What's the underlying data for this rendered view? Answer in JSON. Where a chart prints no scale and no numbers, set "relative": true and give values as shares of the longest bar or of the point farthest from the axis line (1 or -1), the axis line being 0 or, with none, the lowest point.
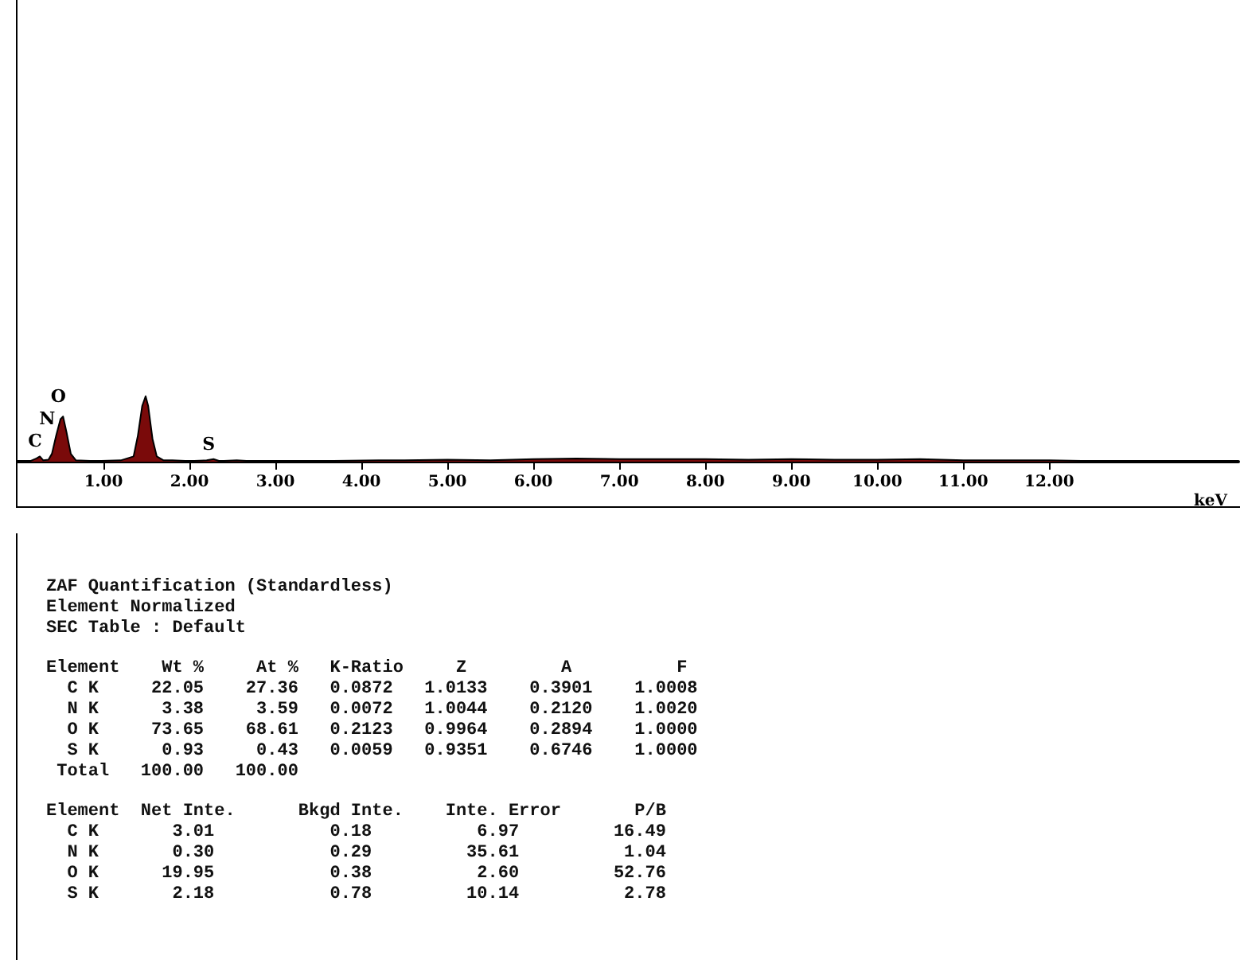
{
  "chart_data": [
    {
      "type": "area",
      "relative": true,
      "xlabel": "keV",
      "color": "#7a0a0a",
      "marker": "none",
      "grid": false,
      "xlim": [
        0,
        14.2
      ],
      "xticks": [
        {
          "value": 1,
          "label": "1.00"
        },
        {
          "value": 2,
          "label": "2.00"
        },
        {
          "value": 3,
          "label": "3.00"
        },
        {
          "value": 4,
          "label": "4.00"
        },
        {
          "value": 5,
          "label": "5.00"
        },
        {
          "value": 6,
          "label": "6.00"
        },
        {
          "value": 7,
          "label": "7.00"
        },
        {
          "value": 8,
          "label": "8.00"
        },
        {
          "value": 9,
          "label": "9.00"
        },
        {
          "value": 10,
          "label": "10.00"
        },
        {
          "value": 11,
          "label": "11.00"
        },
        {
          "value": 12,
          "label": "12.00"
        }
      ],
      "x": [
        0,
        0.15,
        0.22,
        0.26,
        0.3,
        0.36,
        0.4,
        0.45,
        0.5,
        0.53,
        0.57,
        0.62,
        0.68,
        0.9,
        1.2,
        1.35,
        1.4,
        1.45,
        1.49,
        1.52,
        1.57,
        1.62,
        1.7,
        1.8,
        2.0,
        2.2,
        2.28,
        2.35,
        2.55,
        2.7,
        3.5,
        4.2,
        4.5,
        5.0,
        5.5,
        6.0,
        6.5,
        7.0,
        7.5,
        8.0,
        8.5,
        9.0,
        9.5,
        10.0,
        10.5,
        11.0,
        11.5,
        12.0,
        12.5,
        13.0,
        13.5,
        14.2
      ],
      "values": [
        0.01,
        0.01,
        0.05,
        0.08,
        0.02,
        0.03,
        0.12,
        0.4,
        0.65,
        0.69,
        0.45,
        0.12,
        0.02,
        0.01,
        0.02,
        0.08,
        0.4,
        0.85,
        1.0,
        0.85,
        0.35,
        0.08,
        0.02,
        0.02,
        0.01,
        0.02,
        0.04,
        0.01,
        0.02,
        0.01,
        0.01,
        0.02,
        0.02,
        0.03,
        0.02,
        0.04,
        0.05,
        0.04,
        0.04,
        0.04,
        0.03,
        0.04,
        0.03,
        0.03,
        0.04,
        0.02,
        0.02,
        0.02,
        0.01,
        0.01,
        0.01,
        0.01
      ],
      "annotations": [
        {
          "text": "C",
          "x": 0.26,
          "y": 0.08
        },
        {
          "text": "N",
          "x": 0.4,
          "y": 0.12
        },
        {
          "text": "O",
          "x": 0.53,
          "y": 0.69
        },
        {
          "text": "S",
          "x": 2.28,
          "y": 0.04
        }
      ]
    },
    {
      "type": "other",
      "title": "ZAF Quantification (Standardless)",
      "annotations": [
        "Element Normalized",
        "SEC Table : Default",
        "Element    Wt %     At %   K-Ratio     Z         A          F",
        "  C K     22.05    27.36   0.0872   1.0133    0.3901    1.0008",
        "  N K      3.38     3.59   0.0072   1.0044    0.2120    1.0020",
        "  O K     73.65    68.61   0.2123   0.9964    0.2894    1.0000",
        "  S K      0.93     0.43   0.0059   0.9351    0.6746    1.0000",
        " Total   100.00   100.00",
        "Element  Net Inte.      Bkgd Inte.    Inte. Error       P/B",
        "  C K       3.01           0.18          6.97         16.49",
        "  N K       0.30           0.29         35.61          1.04",
        "  O K      19.95           0.38          2.60         52.76",
        "  S K       2.18           0.78         10.14          2.78"
      ]
    }
  ]
}
